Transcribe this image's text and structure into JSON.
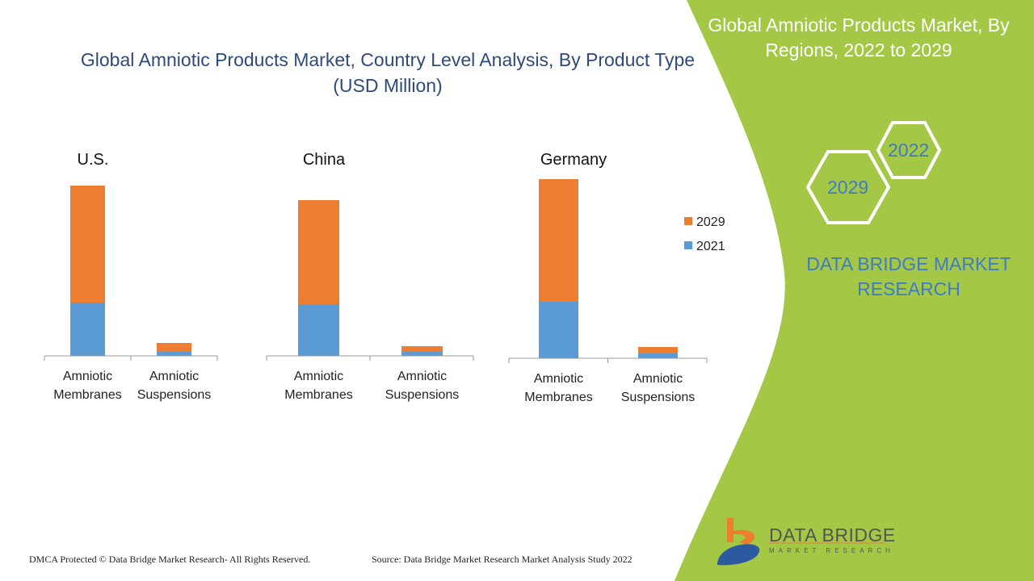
{
  "title": "Global Amniotic Products Market, Country Level Analysis, By Product Type (USD Million)",
  "side_panel": {
    "title": "Global Amniotic Products Market, By Regions, 2022 to 2029",
    "hex_years": [
      "2022",
      "2029"
    ],
    "brand": "DATA BRIDGE MARKET RESEARCH",
    "logo_name": "DATA BRIDGE",
    "logo_sub": "MARKET RESEARCH",
    "color": "#a4c846"
  },
  "footer": {
    "copyright": "DMCA Protected © Data Bridge Market Research- All Rights Reserved.",
    "source": "Source: Data Bridge Market Research Market Analysis Study 2022"
  },
  "chart_data": {
    "type": "bar",
    "stacked": true,
    "value_note": "no value axis shown; values are relative estimates",
    "legend": {
      "placement": "right",
      "entries": [
        "2029",
        "2021"
      ]
    },
    "colors": {
      "2021": "#5b9bd5",
      "2029": "#ed7d31"
    },
    "categories": [
      "Amniotic Membranes",
      "Amniotic Suspensions"
    ],
    "panels": [
      {
        "title": "U.S.",
        "series": [
          {
            "name": "2021",
            "values": [
              66,
              5
            ]
          },
          {
            "name": "2029",
            "values": [
              145,
              11
            ]
          }
        ]
      },
      {
        "title": "China",
        "series": [
          {
            "name": "2021",
            "values": [
              64,
              5
            ]
          },
          {
            "name": "2029",
            "values": [
              129,
              7
            ]
          }
        ]
      },
      {
        "title": "Germany",
        "series": [
          {
            "name": "2021",
            "values": [
              70,
              6
            ]
          },
          {
            "name": "2029",
            "values": [
              152,
              8
            ]
          }
        ]
      }
    ]
  }
}
